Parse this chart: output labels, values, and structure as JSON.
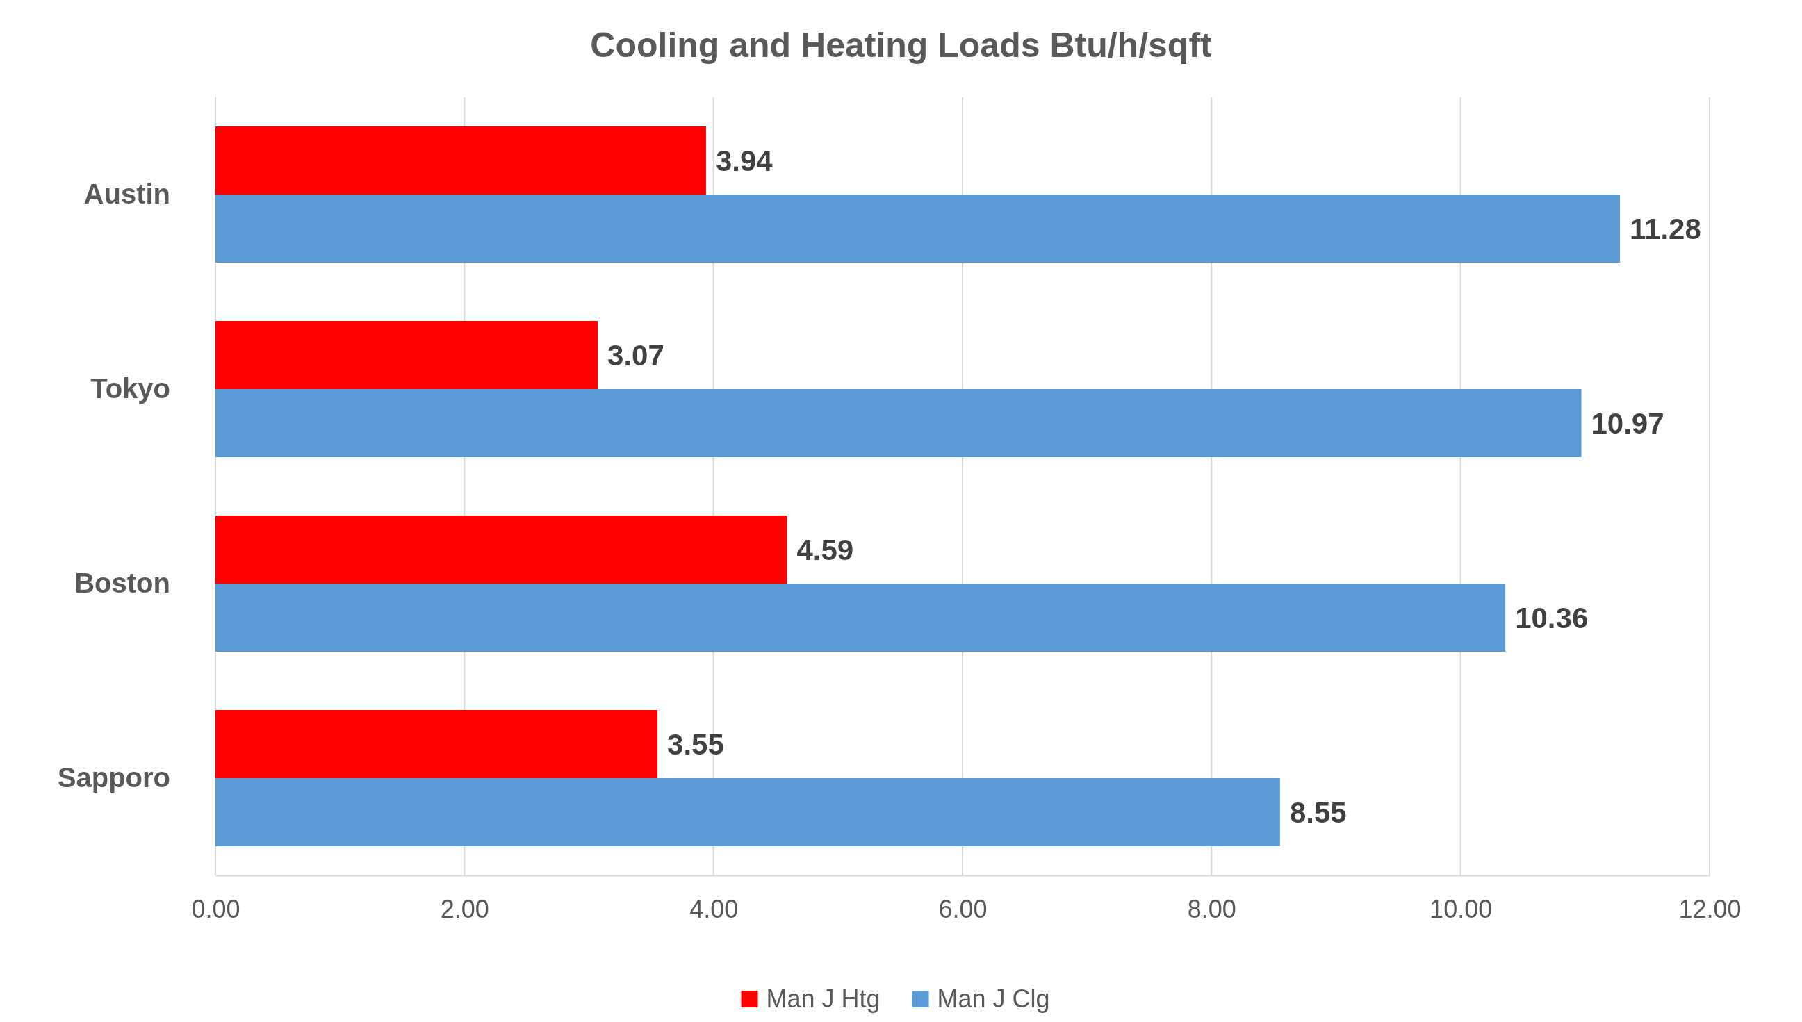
{
  "chart_data": {
    "type": "bar",
    "orientation": "horizontal",
    "title": "Cooling and Heating Loads Btu/h/sqft",
    "categories": [
      "Austin",
      "Tokyo",
      "Boston",
      "Sapporo"
    ],
    "series": [
      {
        "name": "Man J Htg",
        "color": "#ff0000",
        "values": [
          3.94,
          3.07,
          4.59,
          3.55
        ]
      },
      {
        "name": "Man J Clg",
        "color": "#5b9bd5",
        "values": [
          11.28,
          10.97,
          10.36,
          8.55
        ]
      }
    ],
    "xlim": [
      0,
      12
    ],
    "xticks": [
      {
        "value": 0,
        "label": "0.00"
      },
      {
        "value": 2,
        "label": "2.00"
      },
      {
        "value": 4,
        "label": "4.00"
      },
      {
        "value": 6,
        "label": "6.00"
      },
      {
        "value": 8,
        "label": "8.00"
      },
      {
        "value": 10,
        "label": "10.00"
      },
      {
        "value": 12,
        "label": "12.00"
      }
    ],
    "grid": "x",
    "legend": "bottom",
    "data_labels": true
  }
}
